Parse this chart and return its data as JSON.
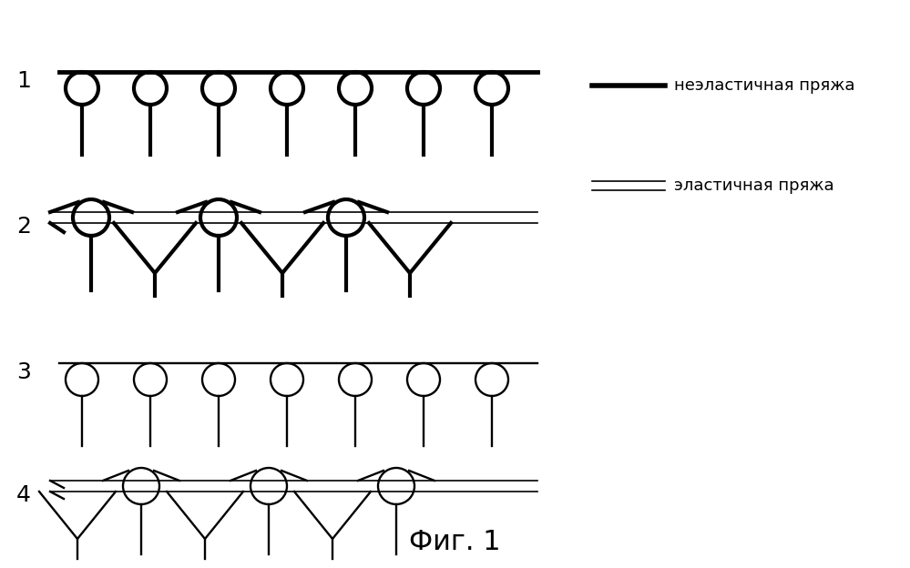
{
  "title": "Фиг. 1",
  "legend_label1": "неэластичная пряжа",
  "legend_label2": "эластичная пряжа",
  "bg_color": "#ffffff",
  "line_color": "#000000",
  "thick_lw": 3.0,
  "thin_lw": 1.2
}
